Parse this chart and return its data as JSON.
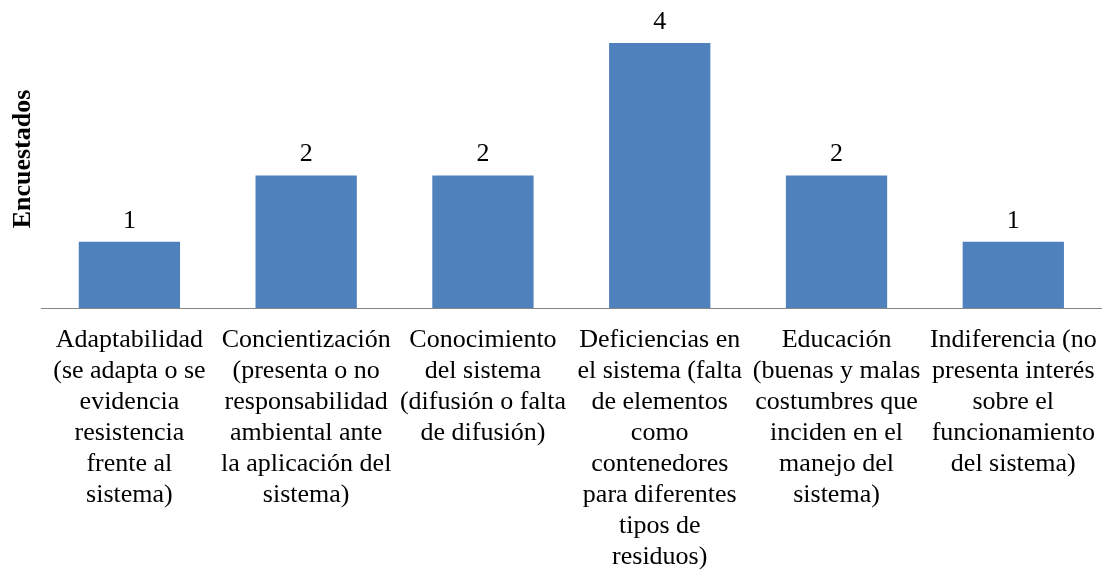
{
  "chart_data": {
    "type": "bar",
    "ylabel": "Encuestados",
    "categories": [
      "Adaptabilidad (se adapta o se evidencia resistencia frente al sistema)",
      "Concientización (presenta o no responsabilidad ambiental ante la aplicación del sistema)",
      "Conocimiento del sistema (difusión o falta de difusión)",
      "Deficiencias en el sistema (falta de elementos como contenedores para diferentes tipos de residuos)",
      "Educación (buenas y malas costumbres que inciden en el manejo del sistema)",
      "Indiferencia (no presenta interés sobre el funcionamiento del sistema)"
    ],
    "values": [
      1,
      2,
      2,
      4,
      2,
      1
    ],
    "color": "#4f81bd",
    "data_labels": true,
    "tick_labels": "x"
  }
}
